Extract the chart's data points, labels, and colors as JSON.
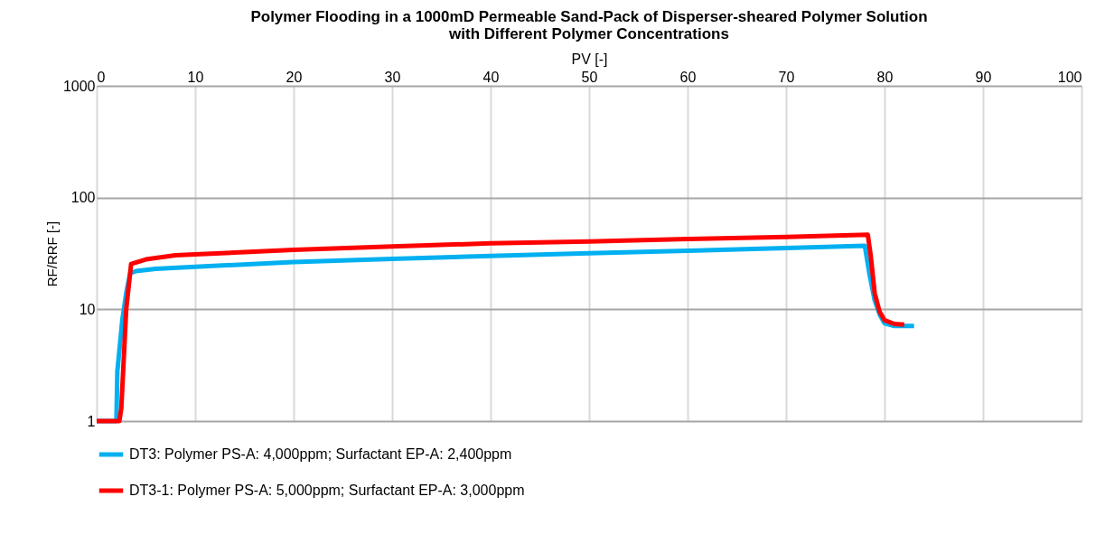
{
  "chart_data": {
    "type": "line",
    "title": "Polymer Flooding in a 1000mD Permeable Sand-Pack of Disperser-sheared Polymer Solution\nwith Different Polymer Concentrations",
    "xlabel": "PV [-]",
    "ylabel": "RF/RRF [-]",
    "xlim": [
      0,
      100
    ],
    "xticks": [
      0,
      10,
      20,
      30,
      40,
      50,
      60,
      70,
      80,
      90,
      100
    ],
    "ylim": [
      1,
      1000
    ],
    "yticks": [
      1,
      10,
      100,
      1000
    ],
    "log": "y",
    "grid": true,
    "legend": "bottom",
    "marker": "none",
    "line_style": "solid",
    "series": [
      {
        "name": "DT3: Polymer PS-A: 4,000ppm; Surfactant EP-A: 2,400ppm",
        "color": "#00b0f0",
        "x": [
          0,
          2.0,
          2.1,
          2.6,
          3.0,
          3.4,
          4,
          6,
          10,
          20,
          30,
          40,
          50,
          60,
          70,
          78,
          78.5,
          79,
          79.5,
          80,
          81,
          83
        ],
        "values": [
          1,
          1,
          2.8,
          8,
          14,
          21,
          22,
          23,
          24,
          26.5,
          28.3,
          30,
          31.8,
          33.5,
          35.3,
          37,
          20,
          12,
          9,
          7.5,
          7.1,
          7.1
        ]
      },
      {
        "name": "DT3-1: Polymer PS-A: 5,000ppm; Surfactant EP-A: 3,000ppm",
        "color": "#ff0000",
        "x": [
          0,
          2.3,
          2.5,
          3.0,
          3.5,
          5,
          8,
          10,
          20,
          30,
          40,
          50,
          60,
          70,
          78.3,
          78.6,
          79,
          79.5,
          80,
          81,
          82
        ],
        "values": [
          1,
          1,
          1.3,
          10,
          25.5,
          28,
          30.5,
          31,
          34,
          36.5,
          39,
          40.5,
          42.5,
          44.5,
          46.5,
          30,
          14,
          9.5,
          8,
          7.4,
          7.3
        ]
      }
    ]
  }
}
